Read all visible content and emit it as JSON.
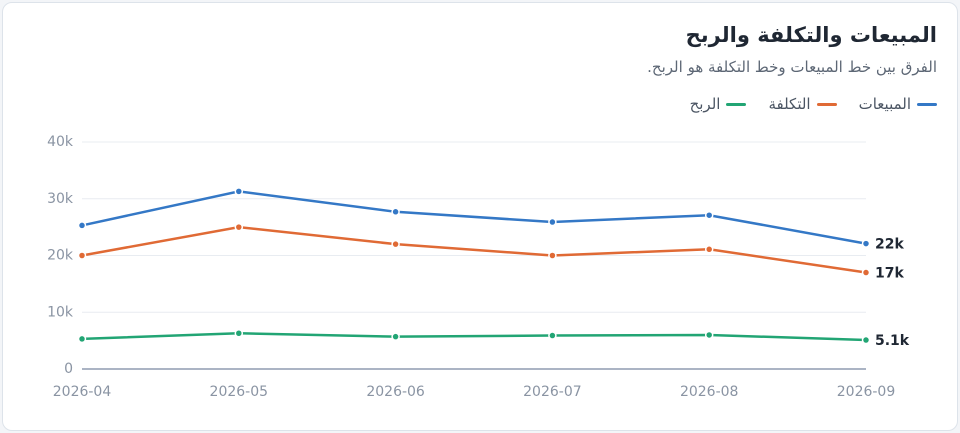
{
  "chart_data": {
    "type": "line",
    "title": "المبيعات والتكلفة والربح",
    "subtitle": "الفرق بين خط المبيعات وخط التكلفة هو الربح.",
    "categories": [
      "2026-04",
      "2026-05",
      "2026-06",
      "2026-07",
      "2026-08",
      "2026-09"
    ],
    "series": [
      {
        "name": "المبيعات",
        "color": "#3478c6",
        "values": [
          25300,
          31300,
          27700,
          25900,
          27100,
          22100
        ],
        "value_labels": [
          null,
          null,
          null,
          null,
          null,
          "22k"
        ]
      },
      {
        "name": "التكلفة",
        "color": "#e06a35",
        "values": [
          20000,
          25000,
          22000,
          20000,
          21100,
          17000
        ],
        "value_labels": [
          null,
          null,
          null,
          null,
          null,
          "17k"
        ]
      },
      {
        "name": "الربح",
        "color": "#22a574",
        "values": [
          5300,
          6300,
          5700,
          5900,
          6000,
          5100
        ],
        "value_labels": [
          null,
          null,
          null,
          null,
          null,
          "5.1k"
        ]
      }
    ],
    "ylim": [
      0,
      40000
    ],
    "yticks": [
      0,
      {
        "value": 10000,
        "label": "10k"
      },
      {
        "value": 20000,
        "label": "20k"
      },
      {
        "value": 30000,
        "label": "30k"
      },
      {
        "value": 40000,
        "label": "40k"
      }
    ],
    "grid": true
  }
}
